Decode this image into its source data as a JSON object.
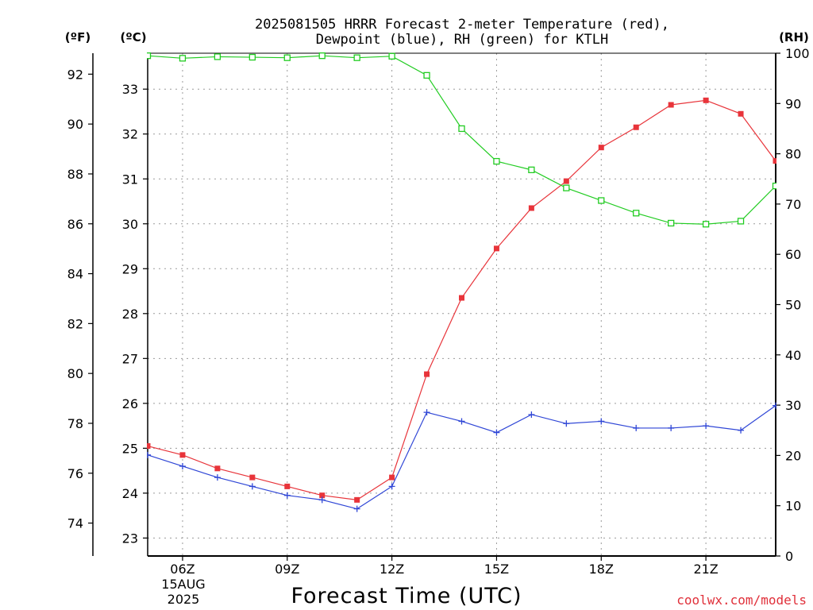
{
  "chart_data": {
    "type": "line",
    "title_line1": "2025081505 HRRR Forecast 2-meter Temperature (red),",
    "title_line2": "Dewpoint (blue), RH (green) for KTLH",
    "unit_f": "(ºF)",
    "unit_c": "(ºC)",
    "unit_rh": "(RH)",
    "xlabel": "Forecast Time (UTC)",
    "date_label": [
      "15AUG",
      "2025"
    ],
    "credit": "coolwx.com/models",
    "x": [
      5,
      6,
      7,
      8,
      9,
      10,
      11,
      12,
      13,
      14,
      15,
      16,
      17,
      18,
      19,
      20,
      21,
      22,
      23
    ],
    "x_ticks": [
      6,
      9,
      12,
      15,
      18,
      21
    ],
    "x_tick_labels": [
      "06Z",
      "09Z",
      "12Z",
      "15Z",
      "18Z",
      "21Z"
    ],
    "xlim": [
      5,
      23
    ],
    "yf_ticks": [
      74,
      76,
      78,
      80,
      82,
      84,
      86,
      88,
      90,
      92
    ],
    "yc_ticks": [
      23,
      24,
      25,
      26,
      27,
      28,
      29,
      30,
      31,
      32,
      33
    ],
    "ycl": [
      22.6,
      33.8
    ],
    "yrh_ticks": [
      0,
      10,
      20,
      30,
      40,
      50,
      60,
      70,
      80,
      90,
      100
    ],
    "yrhl": [
      0,
      100
    ],
    "grid": true,
    "series": [
      {
        "name": "Temperature (red)",
        "axis": "C",
        "color": "#e8343a",
        "marker": "filled-square",
        "values": [
          25.05,
          24.85,
          24.55,
          24.35,
          24.15,
          23.95,
          23.85,
          24.35,
          26.65,
          28.35,
          29.45,
          30.35,
          30.95,
          31.7,
          32.15,
          32.65,
          32.75,
          32.45,
          31.4
        ]
      },
      {
        "name": "Dewpoint (blue)",
        "axis": "C",
        "color": "#2f46d6",
        "marker": "plus",
        "values": [
          24.85,
          24.6,
          24.35,
          24.15,
          23.95,
          23.85,
          23.65,
          24.15,
          25.8,
          25.6,
          25.35,
          25.75,
          25.55,
          25.6,
          25.45,
          25.45,
          25.5,
          25.4,
          25.95
        ]
      },
      {
        "name": "RH (green)",
        "axis": "RH",
        "color": "#22cc22",
        "marker": "open-square",
        "values": [
          99.5,
          99.0,
          99.3,
          99.2,
          99.1,
          99.5,
          99.1,
          99.4,
          95.6,
          85.0,
          78.5,
          76.8,
          73.2,
          70.7,
          68.2,
          66.2,
          66.0,
          66.6,
          73.6
        ]
      }
    ]
  }
}
